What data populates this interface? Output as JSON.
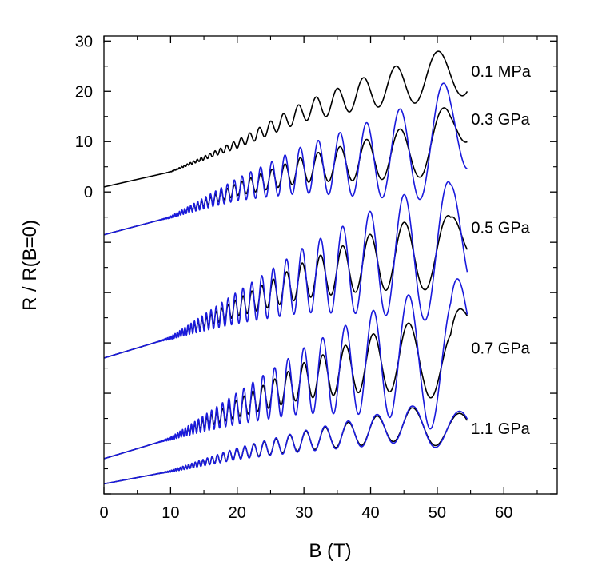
{
  "chart_data": {
    "type": "line",
    "title": "",
    "xlabel": "B (T)",
    "ylabel": "R / R(B=0)",
    "xlim": [
      0,
      68
    ],
    "ylim": [
      -60,
      31
    ],
    "grid": false,
    "x_ticks": [
      0,
      10,
      20,
      30,
      40,
      50,
      60
    ],
    "y_tick_labels": [
      {
        "value": 0,
        "label": "0"
      },
      {
        "value": 10,
        "label": "10"
      },
      {
        "value": 20,
        "label": "20"
      },
      {
        "value": 30,
        "label": "30"
      }
    ],
    "y_minor_ticks": [
      -60,
      -50,
      -40,
      -30,
      -20,
      -10
    ],
    "series_colors": {
      "black": "#000000",
      "blue": "#1a1adc"
    },
    "curves": [
      {
        "label": "0.1 MPa",
        "pressure_gpa": 0.0001,
        "offset": 1,
        "x_end": 54.5,
        "label_y": 24,
        "osc_amp": 0.55,
        "osc_grow": 1.5,
        "bg": [
          [
            0,
            0
          ],
          [
            10,
            3
          ],
          [
            20,
            8.5
          ],
          [
            30,
            15
          ],
          [
            40,
            19
          ],
          [
            50,
            22
          ],
          [
            54.5,
            24
          ]
        ],
        "series": [
          {
            "name": "0.1 MPa",
            "color": "black",
            "mult": 1.0
          }
        ]
      },
      {
        "label": "0.3 GPa",
        "pressure_gpa": 0.3,
        "offset": -8.5,
        "x_end": 54.5,
        "label_y": 14.5,
        "osc_amp": 1.6,
        "osc_grow": 1.3,
        "bg": [
          [
            0,
            0
          ],
          [
            10,
            3.5
          ],
          [
            20,
            9
          ],
          [
            30,
            13
          ],
          [
            40,
            15
          ],
          [
            48,
            17
          ],
          [
            52,
            20
          ],
          [
            54.5,
            25
          ]
        ],
        "series": [
          {
            "name": "0.3 GPa black",
            "color": "black",
            "mult": 0.55
          },
          {
            "name": "0.3 GPa blue",
            "color": "blue",
            "mult": 1.0
          }
        ]
      },
      {
        "label": "0.5 GPa",
        "pressure_gpa": 0.5,
        "offset": -33,
        "x_end": 54.5,
        "label_y": -7,
        "osc_amp": 2.3,
        "osc_grow": 1.25,
        "bg": [
          [
            0,
            0
          ],
          [
            10,
            4
          ],
          [
            20,
            10
          ],
          [
            30,
            15.5
          ],
          [
            40,
            19
          ],
          [
            48,
            21
          ],
          [
            52,
            20
          ],
          [
            54.5,
            27
          ]
        ],
        "series": [
          {
            "name": "0.5 GPa black",
            "color": "black",
            "mult": 0.55
          },
          {
            "name": "0.5 GPa blue",
            "color": "blue",
            "mult": 1.0
          }
        ]
      },
      {
        "label": "0.7 GPa",
        "pressure_gpa": 0.7,
        "offset": -53,
        "x_end": 54.5,
        "label_y": -31,
        "osc_amp": 2.3,
        "osc_grow": 1.25,
        "bg": [
          [
            0,
            0
          ],
          [
            10,
            4
          ],
          [
            20,
            10
          ],
          [
            30,
            15.5
          ],
          [
            40,
            19
          ],
          [
            48,
            20.5
          ],
          [
            52,
            17
          ],
          [
            54.5,
            28
          ]
        ],
        "series": [
          {
            "name": "0.7 GPa black",
            "color": "black",
            "mult": 0.55
          },
          {
            "name": "0.7 GPa blue",
            "color": "blue",
            "mult": 1.0
          }
        ]
      },
      {
        "label": "1.1 GPa",
        "pressure_gpa": 1.1,
        "offset": -58,
        "x_end": 54.5,
        "label_y": -47,
        "osc_amp": 0.9,
        "osc_grow": 1.0,
        "bg": [
          [
            0,
            0
          ],
          [
            10,
            2.5
          ],
          [
            20,
            6
          ],
          [
            30,
            8.5
          ],
          [
            40,
            10.5
          ],
          [
            46,
            12
          ],
          [
            50,
            11
          ],
          [
            54.5,
            10
          ]
        ],
        "series": [
          {
            "name": "1.1 GPa black",
            "color": "black",
            "mult": 0.9
          },
          {
            "name": "1.1 GPa blue",
            "color": "blue",
            "mult": 1.0
          }
        ]
      }
    ]
  }
}
